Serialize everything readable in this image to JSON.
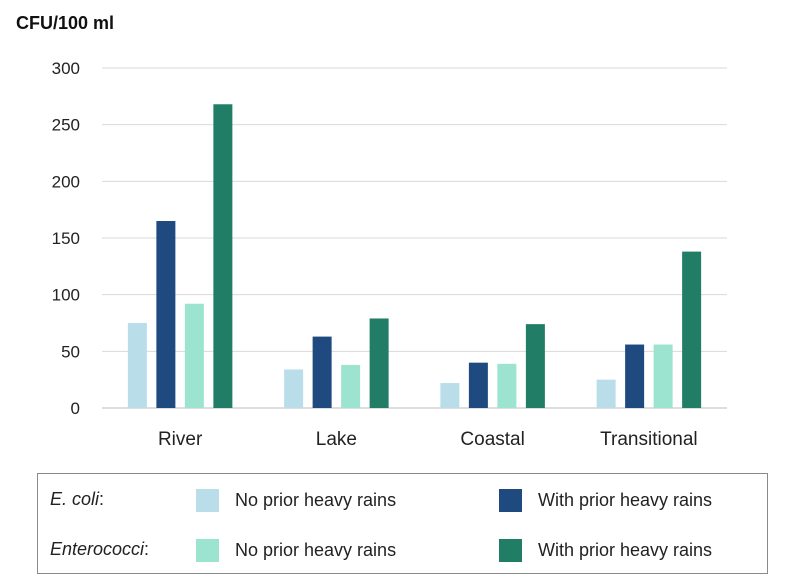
{
  "chart_data": {
    "type": "bar",
    "unit_label": "CFU/100 ml",
    "categories": [
      "River",
      "Lake",
      "Coastal",
      "Transitional"
    ],
    "series": [
      {
        "name": "E. coli: No prior heavy rains",
        "values": [
          75,
          34,
          22,
          25
        ],
        "color": "#b9dde9"
      },
      {
        "name": "E. coli: With prior heavy rains",
        "values": [
          165,
          63,
          40,
          56
        ],
        "color": "#1e4a80"
      },
      {
        "name": "Enterococci: No prior heavy rains",
        "values": [
          92,
          38,
          39,
          56
        ],
        "color": "#9ce3d0"
      },
      {
        "name": "Enterococci: With prior heavy rains",
        "values": [
          268,
          79,
          74,
          138
        ],
        "color": "#217d65"
      }
    ],
    "ylim": [
      0,
      300
    ],
    "yticks": [
      0,
      50,
      100,
      150,
      200,
      250,
      300
    ],
    "grid": true,
    "legend_position": "bottom"
  },
  "legend": {
    "groups": [
      {
        "label": "E. coli",
        "suffix": ":",
        "items": [
          {
            "label": "No prior heavy rains",
            "color": "#b9dde9"
          },
          {
            "label": "With prior heavy rains",
            "color": "#1e4a80"
          }
        ]
      },
      {
        "label": "Enterococci",
        "suffix": ":",
        "items": [
          {
            "label": "No prior heavy rains",
            "color": "#9ce3d0"
          },
          {
            "label": "With prior heavy rains",
            "color": "#217d65"
          }
        ]
      }
    ]
  }
}
